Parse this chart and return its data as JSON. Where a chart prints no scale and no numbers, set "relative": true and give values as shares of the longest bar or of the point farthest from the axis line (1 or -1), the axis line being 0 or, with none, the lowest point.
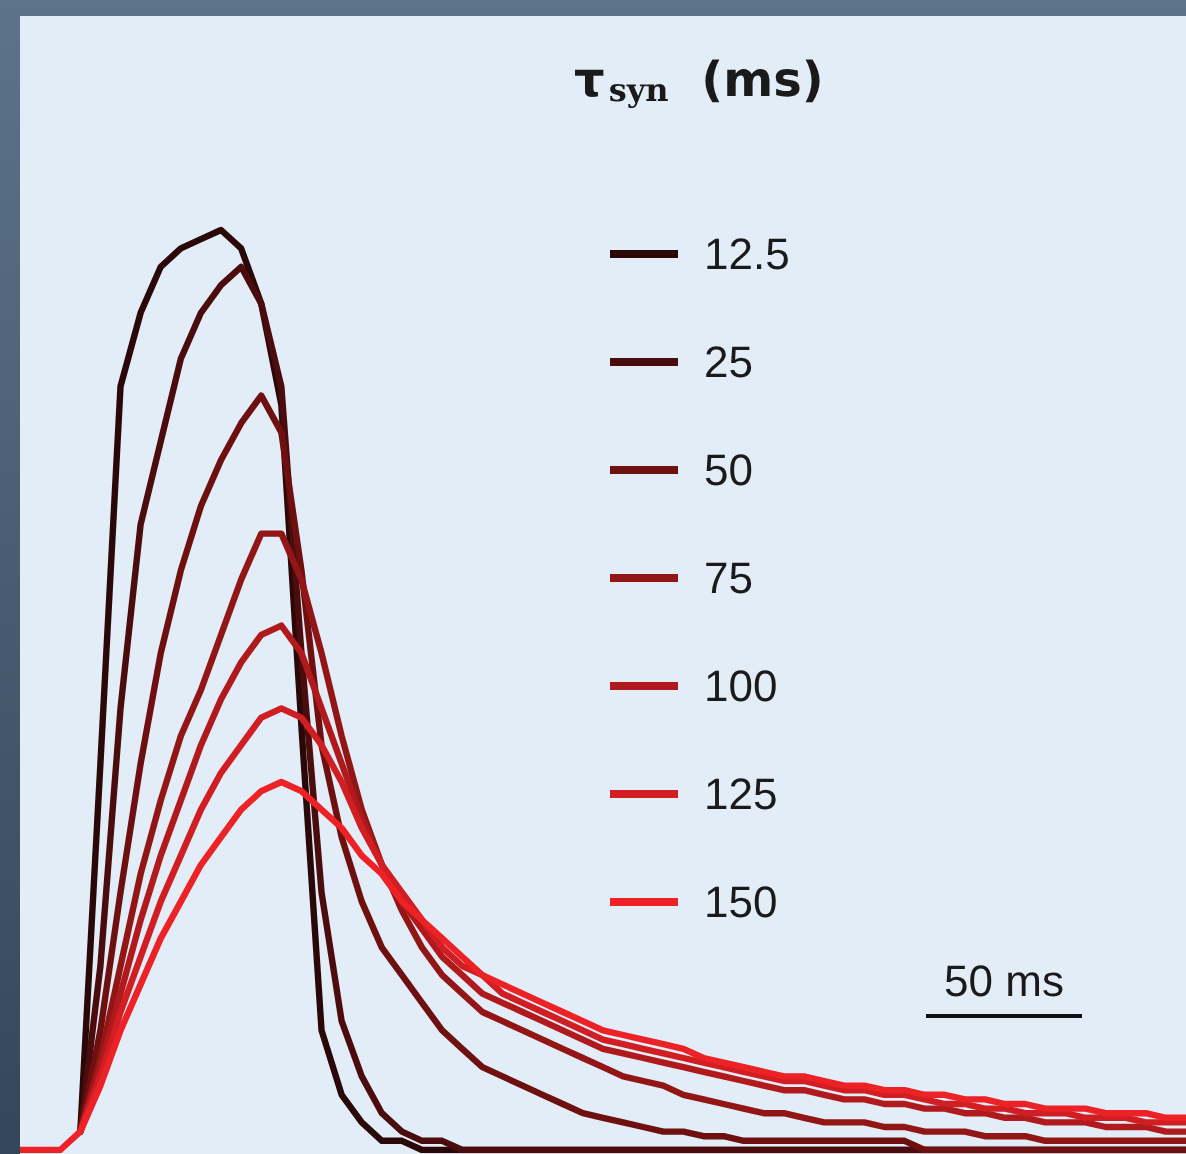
{
  "chart_data": {
    "type": "line",
    "relative": true,
    "legend_title": "τ$_{syn}$ (ms)",
    "legend": "top right",
    "tick_labels": false,
    "marker": "none",
    "line_style": "solid",
    "annotations": [
      "50 ms"
    ],
    "categories": [
      null,
      null,
      null,
      null,
      null,
      null,
      null,
      null,
      null,
      null,
      null,
      null,
      null,
      null,
      null,
      null,
      null,
      null,
      null,
      null,
      null,
      null,
      null,
      null,
      null,
      null,
      null,
      null,
      null,
      null,
      null,
      null,
      null,
      null,
      null,
      null,
      null,
      null,
      null,
      null,
      null,
      null,
      null,
      null,
      null,
      null,
      null,
      null,
      null,
      null,
      null,
      null,
      null,
      null,
      null,
      null,
      null,
      null,
      null
    ],
    "series": [
      {
        "name": "12.5",
        "color": "#2a0808",
        "values": [
          null,
          null,
          null,
          0.02,
          0.42,
          0.83,
          0.91,
          0.96,
          0.98,
          0.99,
          1,
          0.98,
          0.92,
          0.81,
          0.46,
          0.13,
          0.06,
          0.03,
          0.01,
          0.01,
          0,
          0,
          0,
          0,
          0,
          0,
          0,
          0,
          0,
          0,
          0,
          0,
          0,
          0,
          0,
          0,
          0,
          0,
          0,
          0,
          0,
          0,
          0,
          0,
          0,
          0,
          0,
          0,
          0,
          0,
          0,
          0,
          0,
          0,
          0,
          0,
          0,
          0,
          0
        ]
      },
      {
        "name": "25",
        "color": "#4a0c0c",
        "values": [
          null,
          null,
          null,
          0.02,
          0.2,
          0.48,
          0.68,
          0.77,
          0.86,
          0.91,
          0.94,
          0.96,
          0.92,
          0.83,
          0.54,
          0.28,
          0.14,
          0.08,
          0.04,
          0.02,
          0.01,
          0.01,
          0,
          0,
          0,
          0,
          0,
          0,
          0,
          0,
          0,
          0,
          0,
          0,
          0,
          0,
          0,
          0,
          0,
          0,
          0,
          0,
          0,
          0,
          0,
          0,
          0,
          0,
          0,
          0,
          0,
          0,
          0,
          0,
          0,
          0,
          0,
          0,
          0
        ]
      },
      {
        "name": "50",
        "color": "#6e1010",
        "values": [
          null,
          null,
          null,
          0.02,
          0.13,
          0.28,
          0.42,
          0.54,
          0.63,
          0.7,
          0.75,
          0.79,
          0.82,
          0.78,
          0.63,
          0.44,
          0.34,
          0.27,
          0.22,
          0.19,
          0.16,
          0.13,
          0.11,
          0.09,
          0.08,
          0.07,
          0.06,
          0.05,
          0.04,
          0.035,
          0.03,
          0.025,
          0.02,
          0.02,
          0.015,
          0.015,
          0.01,
          0.01,
          0.01,
          0.01,
          0.01,
          0.01,
          0.01,
          0.01,
          0.01,
          0,
          0,
          0,
          0,
          0,
          0,
          0,
          0,
          0,
          0,
          0,
          0,
          0,
          0
        ]
      },
      {
        "name": "75",
        "color": "#921616",
        "values": [
          null,
          null,
          null,
          0.02,
          0.1,
          0.2,
          0.3,
          0.38,
          0.45,
          0.5,
          0.56,
          0.62,
          0.67,
          0.67,
          0.62,
          0.54,
          0.45,
          0.37,
          0.31,
          0.26,
          0.22,
          0.19,
          0.17,
          0.15,
          0.14,
          0.13,
          0.12,
          0.11,
          0.1,
          0.09,
          0.08,
          0.075,
          0.07,
          0.06,
          0.055,
          0.05,
          0.045,
          0.04,
          0.04,
          0.035,
          0.03,
          0.03,
          0.03,
          0.025,
          0.025,
          0.02,
          0.02,
          0.02,
          0.015,
          0.015,
          0.015,
          0.01,
          0.01,
          0.01,
          0.01,
          0.01,
          0.01,
          0.01,
          0.01
        ]
      },
      {
        "name": "100",
        "color": "#b01a1c",
        "values": [
          null,
          null,
          null,
          0.02,
          0.09,
          0.17,
          0.25,
          0.32,
          0.38,
          0.44,
          0.49,
          0.53,
          0.56,
          0.57,
          0.54,
          0.48,
          0.42,
          0.36,
          0.31,
          0.27,
          0.24,
          0.21,
          0.19,
          0.17,
          0.16,
          0.15,
          0.14,
          0.13,
          0.12,
          0.11,
          0.105,
          0.1,
          0.095,
          0.09,
          0.085,
          0.08,
          0.075,
          0.07,
          0.065,
          0.065,
          0.06,
          0.055,
          0.055,
          0.05,
          0.05,
          0.045,
          0.045,
          0.04,
          0.04,
          0.035,
          0.035,
          0.03,
          0.03,
          0.03,
          0.025,
          0.025,
          0.025,
          0.02,
          0.02
        ]
      },
      {
        "name": "125",
        "color": "#d01e22",
        "values": [
          null,
          null,
          null,
          0.02,
          0.08,
          0.15,
          0.21,
          0.27,
          0.32,
          0.37,
          0.41,
          0.44,
          0.47,
          0.48,
          0.47,
          0.44,
          0.4,
          0.35,
          0.31,
          0.28,
          0.25,
          0.22,
          0.2,
          0.19,
          0.17,
          0.16,
          0.15,
          0.14,
          0.13,
          0.12,
          0.115,
          0.11,
          0.105,
          0.1,
          0.095,
          0.09,
          0.085,
          0.08,
          0.075,
          0.075,
          0.07,
          0.065,
          0.065,
          0.06,
          0.06,
          0.055,
          0.05,
          0.05,
          0.045,
          0.045,
          0.04,
          0.04,
          0.04,
          0.035,
          0.035,
          0.035,
          0.03,
          0.03,
          0.03
        ]
      },
      {
        "name": "150",
        "color": "#ec2226",
        "values": [
          0,
          0,
          0,
          0.02,
          0.07,
          0.13,
          0.18,
          0.23,
          0.27,
          0.31,
          0.34,
          0.37,
          0.39,
          0.4,
          0.39,
          0.37,
          0.35,
          0.32,
          0.3,
          0.27,
          0.25,
          0.23,
          0.21,
          0.19,
          0.18,
          0.17,
          0.16,
          0.15,
          0.14,
          0.13,
          0.125,
          0.12,
          0.115,
          0.11,
          0.1,
          0.095,
          0.09,
          0.085,
          0.08,
          0.08,
          0.075,
          0.07,
          0.07,
          0.065,
          0.065,
          0.06,
          0.06,
          0.055,
          0.055,
          0.05,
          0.05,
          0.045,
          0.045,
          0.045,
          0.04,
          0.04,
          0.04,
          0.035,
          0.035
        ]
      }
    ]
  }
}
